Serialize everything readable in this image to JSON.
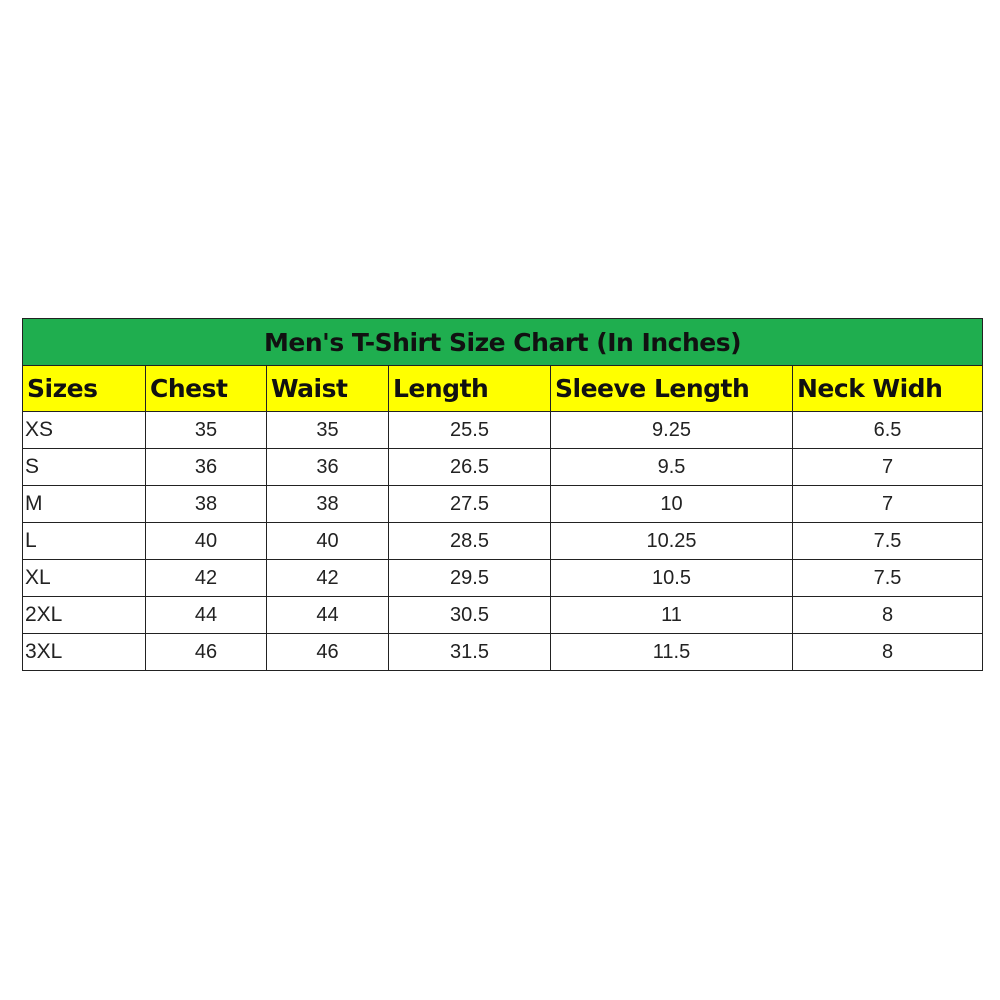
{
  "title": "Men's T-Shirt Size Chart (In Inches)",
  "colors": {
    "title_bg": "#1fae4f",
    "header_bg": "#ffff00"
  },
  "headers": [
    "Sizes",
    "Chest",
    "Waist",
    "Length",
    "Sleeve Length",
    "Neck Widh"
  ],
  "rows": [
    [
      "XS",
      "35",
      "35",
      "25.5",
      "9.25",
      "6.5"
    ],
    [
      "S",
      "36",
      "36",
      "26.5",
      "9.5",
      "7"
    ],
    [
      "M",
      "38",
      "38",
      "27.5",
      "10",
      "7"
    ],
    [
      "L",
      "40",
      "40",
      "28.5",
      "10.25",
      "7.5"
    ],
    [
      "XL",
      "42",
      "42",
      "29.5",
      "10.5",
      "7.5"
    ],
    [
      "2XL",
      "44",
      "44",
      "30.5",
      "11",
      "8"
    ],
    [
      "3XL",
      "46",
      "46",
      "31.5",
      "11.5",
      "8"
    ]
  ]
}
